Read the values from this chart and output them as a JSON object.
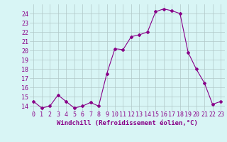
{
  "x": [
    0,
    1,
    2,
    3,
    4,
    5,
    6,
    7,
    8,
    9,
    10,
    11,
    12,
    13,
    14,
    15,
    16,
    17,
    18,
    19,
    20,
    21,
    22,
    23
  ],
  "y": [
    14.5,
    13.8,
    14.0,
    15.2,
    14.5,
    13.8,
    14.0,
    14.4,
    14.0,
    17.5,
    20.2,
    20.1,
    21.5,
    21.7,
    22.0,
    24.2,
    24.5,
    24.3,
    24.0,
    19.8,
    18.0,
    16.5,
    14.2,
    14.5
  ],
  "line_color": "#880088",
  "marker": "D",
  "marker_size": 2,
  "bg_color": "#d8f5f5",
  "grid_color": "#b0c8c8",
  "xlabel": "Windchill (Refroidissement éolien,°C)",
  "xlabel_fontsize": 6.5,
  "tick_fontsize": 6,
  "ylim": [
    13.5,
    25.0
  ],
  "yticks": [
    14,
    15,
    16,
    17,
    18,
    19,
    20,
    21,
    22,
    23,
    24
  ],
  "xticks": [
    0,
    1,
    2,
    3,
    4,
    5,
    6,
    7,
    8,
    9,
    10,
    11,
    12,
    13,
    14,
    15,
    16,
    17,
    18,
    19,
    20,
    21,
    22,
    23
  ]
}
